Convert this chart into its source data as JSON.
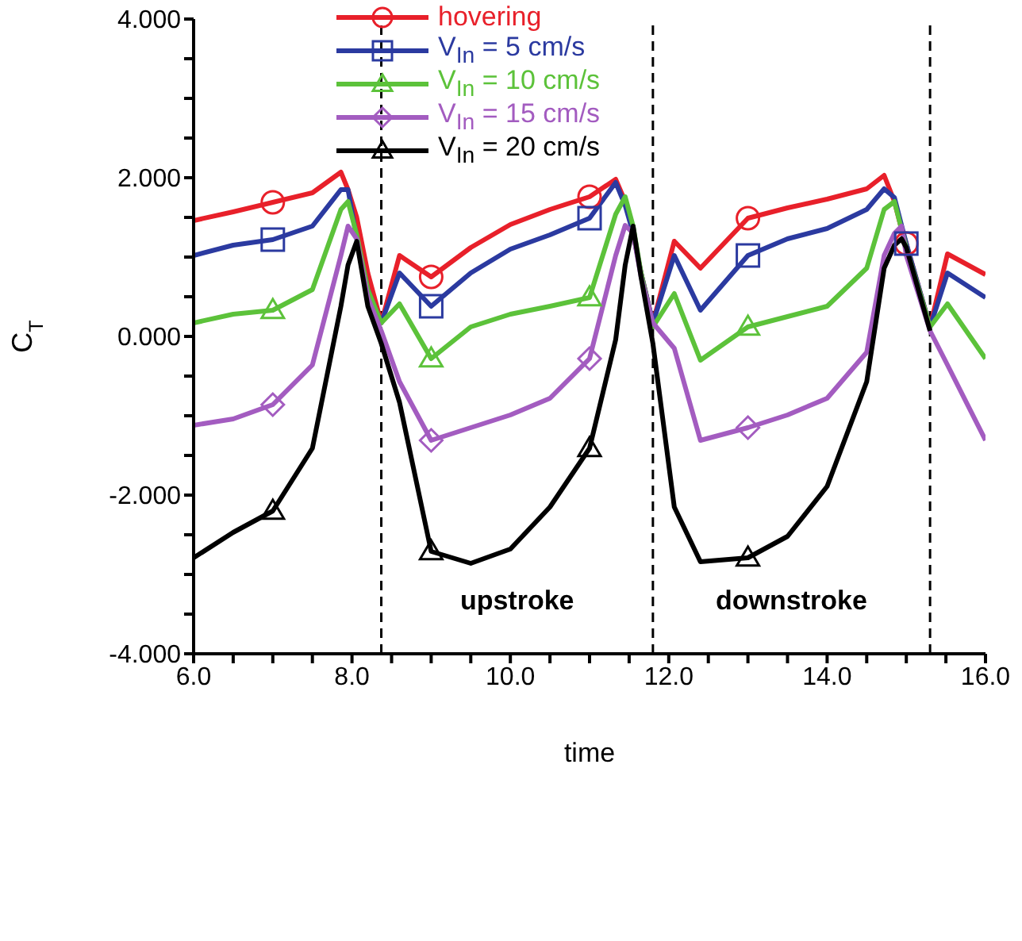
{
  "chart_data": {
    "type": "line",
    "xlabel": "time",
    "ylabel": "C$_{T}$",
    "x": [
      6,
      6.5,
      7,
      7.5,
      7.86,
      7.95,
      8.06,
      8.2,
      8.37,
      8.6,
      9,
      9.5,
      10,
      10.5,
      11,
      11.33,
      11.45,
      11.55,
      11.65,
      11.8,
      12.07,
      12.4,
      13,
      13.5,
      14,
      14.5,
      14.72,
      14.85,
      14.94,
      15,
      15.3,
      15.52,
      16
    ],
    "series": [
      {
        "name": "hovering",
        "color": "#e8202a",
        "values": [
          1.46,
          1.57,
          1.69,
          1.81,
          2.07,
          1.85,
          1.5,
          0.8,
          0.17,
          1.02,
          0.75,
          1.12,
          1.41,
          1.6,
          1.76,
          1.98,
          1.7,
          1.3,
          0.8,
          0.17,
          1.2,
          0.86,
          1.49,
          1.62,
          1.73,
          1.86,
          2.03,
          1.7,
          1.35,
          1.17,
          0.12,
          1.04,
          0.78
        ]
      },
      {
        "name": "V$_{In}$ = 5 cm/s",
        "color": "#2b3aa0",
        "values": [
          1.02,
          1.15,
          1.22,
          1.39,
          1.85,
          1.85,
          1.23,
          0.59,
          0.17,
          0.8,
          0.38,
          0.8,
          1.1,
          1.28,
          1.49,
          1.94,
          1.65,
          1.3,
          0.8,
          0.17,
          1.02,
          0.33,
          1.02,
          1.23,
          1.36,
          1.6,
          1.86,
          1.75,
          1.4,
          1.17,
          0.12,
          0.8,
          0.49
        ]
      },
      {
        "name": "V$_{In}$ = 10 cm/s",
        "color": "#5cc23a",
        "values": [
          0.17,
          0.28,
          0.33,
          0.59,
          1.6,
          1.7,
          1.28,
          0.59,
          0.17,
          0.41,
          -0.28,
          0.12,
          0.28,
          0.38,
          0.49,
          1.54,
          1.76,
          1.39,
          0.8,
          0.12,
          0.54,
          -0.3,
          0.12,
          0.25,
          0.38,
          0.86,
          1.6,
          1.7,
          1.35,
          1.12,
          0.12,
          0.41,
          -0.28
        ]
      },
      {
        "name": "V$_{In}$ = 15 cm/s",
        "color": "#a35cc0",
        "values": [
          -1.12,
          -1.04,
          -0.86,
          -0.36,
          1.02,
          1.39,
          1.23,
          0.49,
          0.07,
          -0.57,
          -1.31,
          -1.15,
          -0.99,
          -0.78,
          -0.28,
          1.02,
          1.4,
          1.3,
          0.75,
          0.17,
          -0.15,
          -1.31,
          -1.15,
          -0.99,
          -0.78,
          -0.2,
          1.02,
          1.3,
          1.39,
          1.02,
          0.07,
          -0.36,
          -1.31
        ]
      },
      {
        "name": "V$_{In}$ = 20 cm/s",
        "color": "#000000",
        "values": [
          -2.79,
          -2.47,
          -2.2,
          -1.41,
          0.38,
          0.9,
          1.2,
          0.38,
          -0.09,
          -0.83,
          -2.71,
          -2.86,
          -2.68,
          -2.15,
          -1.41,
          -0.04,
          0.9,
          1.39,
          0.75,
          -0.09,
          -2.15,
          -2.84,
          -2.79,
          -2.52,
          -1.89,
          -0.57,
          0.86,
          1.15,
          1.23,
          1.12,
          0.07,
          null,
          null
        ]
      },
      {
        "type": "scatter",
        "color": "#e8202a",
        "marker": "circle",
        "x": [
          7,
          9,
          11,
          13,
          15
        ],
        "values": [
          1.69,
          0.75,
          1.76,
          1.49,
          1.17
        ]
      },
      {
        "type": "scatter",
        "color": "#2b3aa0",
        "marker": "square",
        "x": [
          7,
          9,
          11,
          13,
          15
        ],
        "values": [
          1.22,
          0.38,
          1.49,
          1.02,
          1.17
        ]
      },
      {
        "type": "scatter",
        "color": "#5cc23a",
        "marker": "triangle",
        "x": [
          7,
          9,
          11,
          13
        ],
        "values": [
          0.33,
          -0.28,
          0.49,
          0.12
        ]
      },
      {
        "type": "scatter",
        "color": "#a35cc0",
        "marker": "diamond",
        "x": [
          7,
          9,
          11,
          13
        ],
        "values": [
          -0.86,
          -1.31,
          -0.28,
          -1.15
        ]
      },
      {
        "type": "scatter",
        "color": "#000000",
        "marker": "triangle",
        "x": [
          7,
          9,
          11,
          13
        ],
        "values": [
          -2.2,
          -2.71,
          -1.41,
          -2.79
        ]
      }
    ],
    "xlim": [
      6,
      16
    ],
    "xticks": [
      {
        "value": 6,
        "label": "6.0"
      },
      {
        "value": 6.5,
        "label": null
      },
      {
        "value": 7,
        "label": null
      },
      {
        "value": 7.5,
        "label": null
      },
      {
        "value": 8,
        "label": "8.0"
      },
      {
        "value": 8.5,
        "label": null
      },
      {
        "value": 9,
        "label": null
      },
      {
        "value": 9.5,
        "label": null
      },
      {
        "value": 10,
        "label": "10.0"
      },
      {
        "value": 10.5,
        "label": null
      },
      {
        "value": 11,
        "label": null
      },
      {
        "value": 11.5,
        "label": null
      },
      {
        "value": 12,
        "label": "12.0"
      },
      {
        "value": 12.5,
        "label": null
      },
      {
        "value": 13,
        "label": null
      },
      {
        "value": 13.5,
        "label": null
      },
      {
        "value": 14,
        "label": "14.0"
      },
      {
        "value": 14.5,
        "label": null
      },
      {
        "value": 15,
        "label": null
      },
      {
        "value": 15.5,
        "label": null
      },
      {
        "value": 16,
        "label": "16.0"
      }
    ],
    "ylim": [
      -4,
      4
    ],
    "yticks": [
      {
        "value": -4,
        "label": "-4.000"
      },
      {
        "value": -3.5,
        "label": null
      },
      {
        "value": -3,
        "label": null
      },
      {
        "value": -2.5,
        "label": null
      },
      {
        "value": -2,
        "label": "-2.000"
      },
      {
        "value": -1.5,
        "label": null
      },
      {
        "value": -1,
        "label": null
      },
      {
        "value": -0.5,
        "label": null
      },
      {
        "value": 0,
        "label": "0.000"
      },
      {
        "value": 0.5,
        "label": null
      },
      {
        "value": 1,
        "label": null
      },
      {
        "value": 1.5,
        "label": null
      },
      {
        "value": 2,
        "label": "2.000"
      },
      {
        "value": 2.5,
        "label": null
      },
      {
        "value": 3,
        "label": null
      },
      {
        "value": 3.5,
        "label": null
      },
      {
        "value": 4,
        "label": "4.000"
      }
    ],
    "ref_lines": [
      {
        "axis": "x",
        "value": 8.37,
        "label": null,
        "color": "#000000",
        "line_style": "dashed"
      },
      {
        "axis": "x",
        "value": 11.8,
        "label": null,
        "color": "#000000",
        "line_style": "dashed"
      },
      {
        "axis": "x",
        "value": 15.3,
        "label": null,
        "color": "#000000",
        "line_style": "dashed"
      }
    ],
    "annotations": [
      "upstroke",
      "downstroke"
    ],
    "legend": "top",
    "line_style": "solid"
  }
}
